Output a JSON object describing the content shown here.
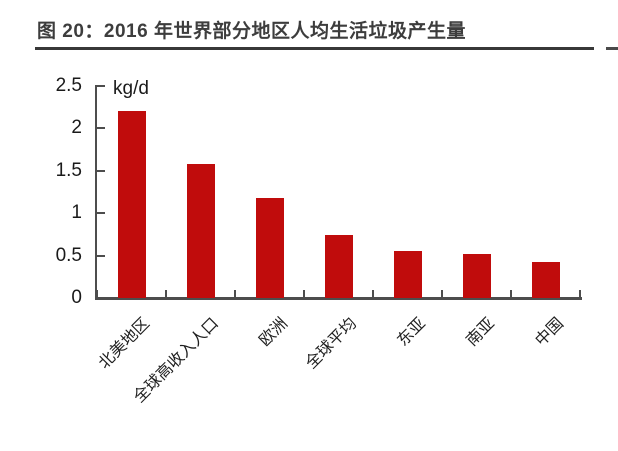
{
  "figure": {
    "title": "图 20：2016 年世界部分地区人均生活垃圾产生量"
  },
  "chart_data": {
    "type": "bar",
    "title": "2016 年世界部分地区人均生活垃圾产生量",
    "unit_label": "kg/d",
    "categories": [
      "北美地区",
      "全球高收入人口",
      "欧洲",
      "全球平均",
      "东亚",
      "南亚",
      "中国"
    ],
    "values": [
      2.21,
      1.58,
      1.18,
      0.74,
      0.56,
      0.52,
      0.43
    ],
    "xlabel": "",
    "ylabel": "kg/d",
    "ylim": [
      0,
      2.5
    ],
    "yticks": [
      0,
      0.5,
      1,
      1.5,
      2,
      2.5
    ],
    "ytick_labels": [
      "0",
      "0.5",
      "1",
      "1.5",
      "2",
      "2.5"
    ],
    "bar_color": "#c00c0c",
    "axis_color": "#4d4d4d",
    "grid": false,
    "legend_position": "none"
  }
}
